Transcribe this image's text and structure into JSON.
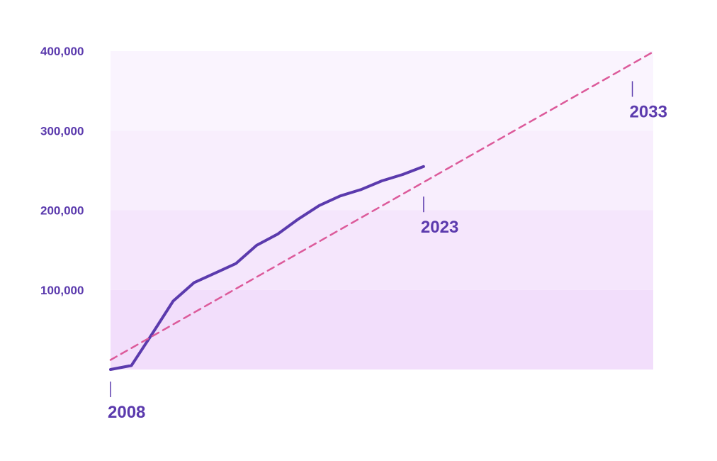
{
  "chart_data": {
    "type": "line",
    "title": "",
    "xlabel": "",
    "ylabel": "",
    "xlim": [
      2008,
      2034
    ],
    "ylim": [
      0,
      400000
    ],
    "y_ticks": [
      {
        "value": 100000,
        "label": "100,000"
      },
      {
        "value": 200000,
        "label": "200,000"
      },
      {
        "value": 300000,
        "label": "300,000"
      },
      {
        "value": 400000,
        "label": "400,000"
      }
    ],
    "x_annotations": [
      {
        "value": 2008,
        "label": "2008",
        "y": 0
      },
      {
        "value": 2023,
        "label": "2023",
        "y": 235000
      },
      {
        "value": 2033,
        "label": "2033",
        "y": 380000
      }
    ],
    "grid": false,
    "background_bands": true,
    "series": [
      {
        "style": "solid",
        "color": "#5b3aad",
        "x": [
          2008,
          2009,
          2010,
          2011,
          2012,
          2013,
          2014,
          2015,
          2016,
          2017,
          2018,
          2019,
          2020,
          2021,
          2022,
          2023
        ],
        "y": [
          0,
          5000,
          45000,
          86000,
          109000,
          121000,
          133000,
          156000,
          170000,
          189000,
          206000,
          218000,
          226000,
          237000,
          245000,
          255000
        ]
      },
      {
        "style": "dashed",
        "color": "#dc5a9a",
        "x": [
          2008,
          2034
        ],
        "y": [
          12000,
          399000
        ]
      }
    ]
  },
  "colors": {
    "axis_text": "#5b3aad",
    "band_colors": [
      "#f2defb",
      "#f5e6fc",
      "#f8eefd",
      "#faf4fe"
    ]
  }
}
